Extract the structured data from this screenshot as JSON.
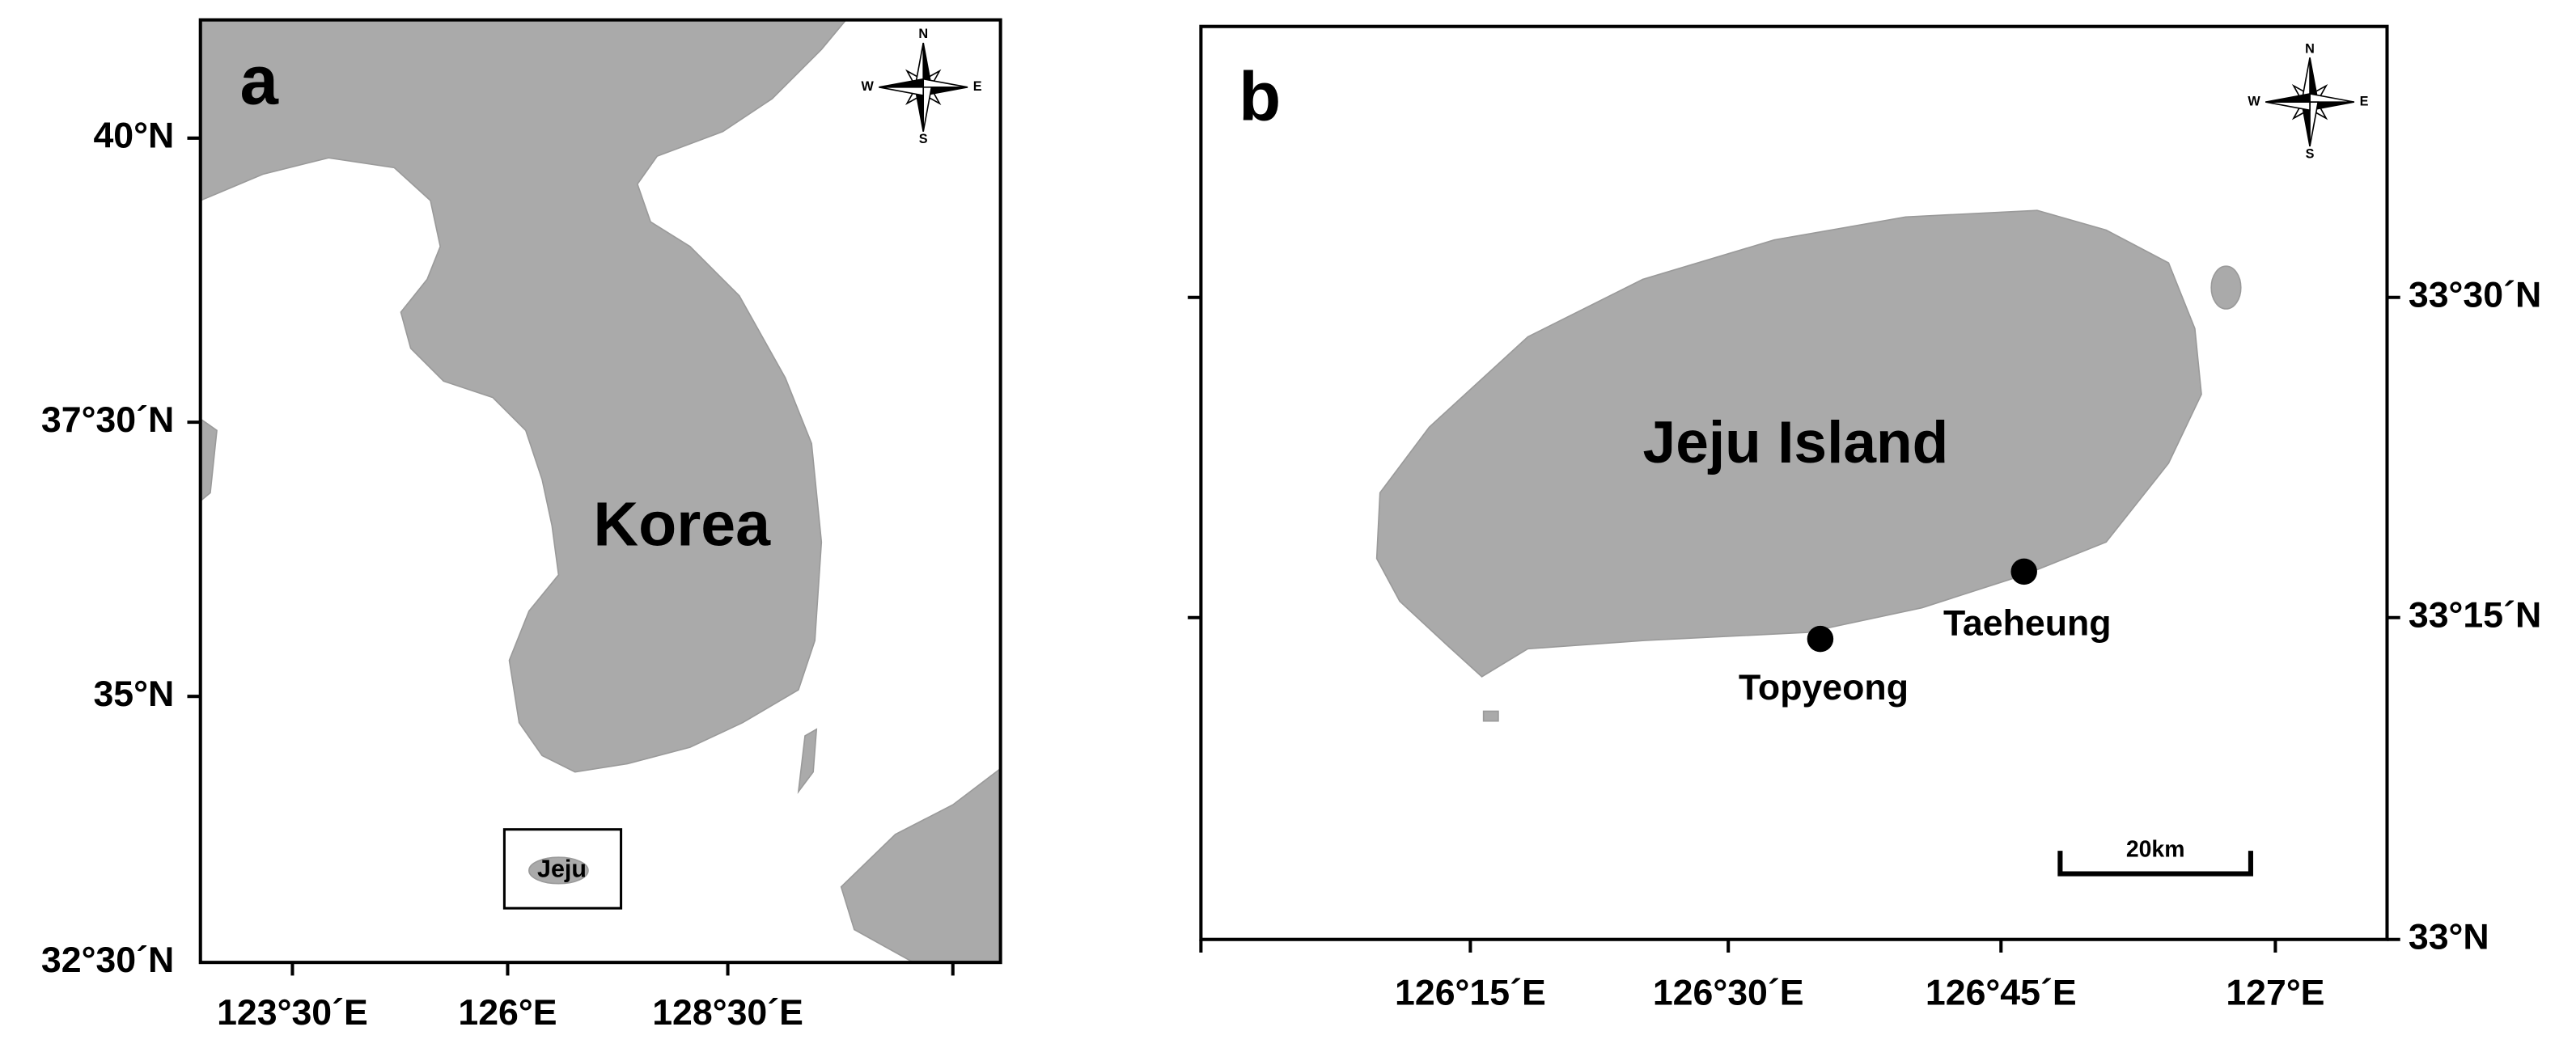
{
  "panel_a": {
    "label": "a",
    "place_label": "Korea",
    "inset_label": "Jeju",
    "compass": {
      "n": "N",
      "e": "E",
      "s": "S",
      "w": "W"
    },
    "y_tick_labels": [
      "40°N",
      "37°30´N",
      "35°N",
      "32°30´N"
    ],
    "x_tick_labels": [
      "123°30´E",
      "126°E",
      "128°30´E"
    ]
  },
  "panel_b": {
    "label": "b",
    "place_label": "Jeju Island",
    "sites": [
      "Taeheung",
      "Topyeong"
    ],
    "scale_bar": "20km",
    "compass": {
      "n": "N",
      "e": "E",
      "s": "S",
      "w": "W"
    },
    "y_tick_labels": [
      "33°30´N",
      "33°15´N",
      "33°N"
    ],
    "x_tick_labels": [
      "126°15´E",
      "126°30´E",
      "126°45´E",
      "127°E"
    ]
  }
}
